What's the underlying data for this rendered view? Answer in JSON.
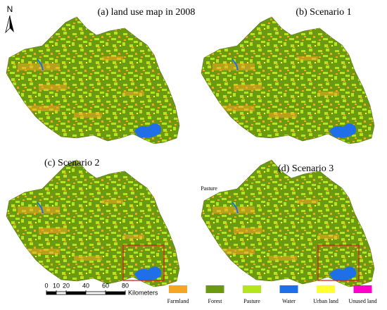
{
  "north": "N",
  "panels": [
    {
      "title": "(a) land use map in 2008"
    },
    {
      "title": "(b) Scenario 1"
    },
    {
      "title": "(c) Scenario 2"
    },
    {
      "title": "(d) Scenario 3"
    }
  ],
  "annotation": "Pasture",
  "scale_bar": {
    "ticks": [
      0,
      10,
      20,
      40,
      60,
      80
    ],
    "unit": "Kilometers"
  },
  "legend": [
    {
      "label": "Farmland",
      "color": "#f5a623"
    },
    {
      "label": "Forest",
      "color": "#6b9a10"
    },
    {
      "label": "Pasture",
      "color": "#b5e61d"
    },
    {
      "label": "Water",
      "color": "#1e6fe8"
    },
    {
      "label": "Urban land",
      "color": "#ffff33"
    },
    {
      "label": "Unused land",
      "color": "#ff00cc"
    }
  ]
}
